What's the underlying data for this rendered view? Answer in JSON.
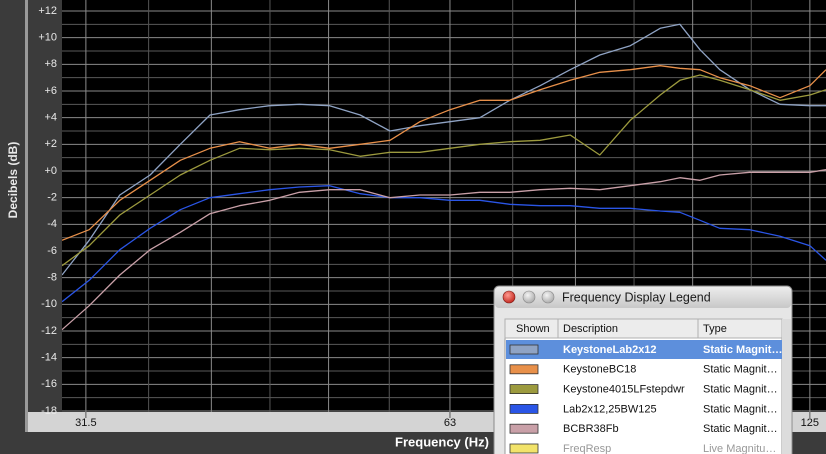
{
  "chart_data": {
    "type": "line",
    "xlabel": "Frequency (Hz)",
    "ylabel": "Decibels (dB)",
    "xscale": "log",
    "grid": true,
    "xlim": [
      30.1,
      128.9
    ],
    "ylim": [
      -18,
      12
    ],
    "xticks": [
      31.5,
      63,
      125
    ],
    "xgrid": [
      31.5,
      40,
      50,
      63,
      80,
      100,
      125
    ],
    "yticks": [
      {
        "value": -18,
        "label": "-18"
      },
      {
        "value": -16,
        "label": "-16"
      },
      {
        "value": -14,
        "label": "-14"
      },
      {
        "value": -12,
        "label": "-12"
      },
      {
        "value": -10,
        "label": "-10"
      },
      {
        "value": -8,
        "label": "-8"
      },
      {
        "value": -6,
        "label": "-6"
      },
      {
        "value": -4,
        "label": "-4"
      },
      {
        "value": -2,
        "label": "-2"
      },
      {
        "value": 0,
        "label": "+0"
      },
      {
        "value": 2,
        "label": "+2"
      },
      {
        "value": 4,
        "label": "+4"
      },
      {
        "value": 6,
        "label": "+6"
      },
      {
        "value": 8,
        "label": "+8"
      },
      {
        "value": 10,
        "label": "+10"
      },
      {
        "value": 12,
        "label": "+12"
      }
    ],
    "x": [
      30.1,
      31.7,
      33.6,
      35.6,
      37.7,
      39.9,
      42.2,
      44.7,
      47.3,
      50.1,
      53.1,
      56.2,
      59.5,
      63.0,
      66.7,
      70.6,
      74.8,
      79.2,
      83.8,
      88.8,
      94.0,
      97.6,
      101.4,
      105.3,
      111.5,
      118.1,
      125.0,
      128.9
    ],
    "series": [
      {
        "name": "KeystoneLab2x12",
        "color": "#8fa3c4",
        "values": [
          -7.8,
          -5.2,
          -1.8,
          -0.3,
          2.0,
          4.2,
          4.6,
          4.9,
          5.0,
          4.9,
          4.2,
          3.0,
          3.4,
          3.7,
          4.0,
          5.3,
          6.4,
          7.6,
          8.7,
          9.4,
          10.7,
          11.0,
          9.1,
          7.6,
          6.1,
          5.0,
          4.9,
          4.9
        ]
      },
      {
        "name": "KeystoneBC18",
        "color": "#e8904a",
        "values": [
          -5.2,
          -4.4,
          -2.2,
          -0.7,
          0.8,
          1.7,
          2.2,
          1.7,
          2.0,
          1.7,
          2.0,
          2.3,
          3.7,
          4.6,
          5.3,
          5.3,
          6.1,
          6.8,
          7.4,
          7.6,
          7.9,
          7.7,
          7.6,
          7.0,
          6.4,
          5.5,
          6.4,
          7.6
        ]
      },
      {
        "name": "Keystone4015LFstepdwr",
        "color": "#9c9a3e",
        "values": [
          -7.1,
          -5.6,
          -3.3,
          -1.8,
          -0.3,
          0.8,
          1.7,
          1.6,
          1.7,
          1.6,
          1.1,
          1.4,
          1.4,
          1.7,
          2.0,
          2.2,
          2.3,
          2.7,
          1.2,
          3.8,
          5.7,
          6.8,
          7.2,
          6.8,
          6.1,
          5.3,
          5.7,
          6.1
        ]
      },
      {
        "name": "Lab2x12,25BW125",
        "color": "#2a55e6",
        "values": [
          -9.8,
          -8.2,
          -5.9,
          -4.3,
          -2.9,
          -2.0,
          -1.7,
          -1.4,
          -1.2,
          -1.1,
          -1.7,
          -2.0,
          -2.0,
          -2.2,
          -2.2,
          -2.5,
          -2.6,
          -2.6,
          -2.8,
          -2.8,
          -3.0,
          -3.1,
          -3.7,
          -4.3,
          -4.4,
          -4.9,
          -5.6,
          -6.7
        ]
      },
      {
        "name": "BCBR38Fb",
        "color": "#c9a0a8",
        "values": [
          -11.9,
          -10.1,
          -7.8,
          -5.9,
          -4.6,
          -3.2,
          -2.6,
          -2.2,
          -1.6,
          -1.4,
          -1.4,
          -2.0,
          -1.8,
          -1.8,
          -1.6,
          -1.6,
          -1.4,
          -1.3,
          -1.4,
          -1.1,
          -0.8,
          -0.5,
          -0.7,
          -0.3,
          -0.1,
          -0.1,
          -0.1,
          0.1
        ]
      }
    ]
  },
  "legend_window": {
    "title": "Frequency Display Legend",
    "columns": [
      "Shown",
      "Description",
      "Type"
    ],
    "types": [
      "Static Magnit…",
      "Static Magnit…",
      "Static Magnit…",
      "Static Magnit…",
      "Static Magnit…"
    ],
    "extra": {
      "name": "FreqResp",
      "color": "#f2e36a",
      "type": "Live Magnitu…"
    }
  }
}
